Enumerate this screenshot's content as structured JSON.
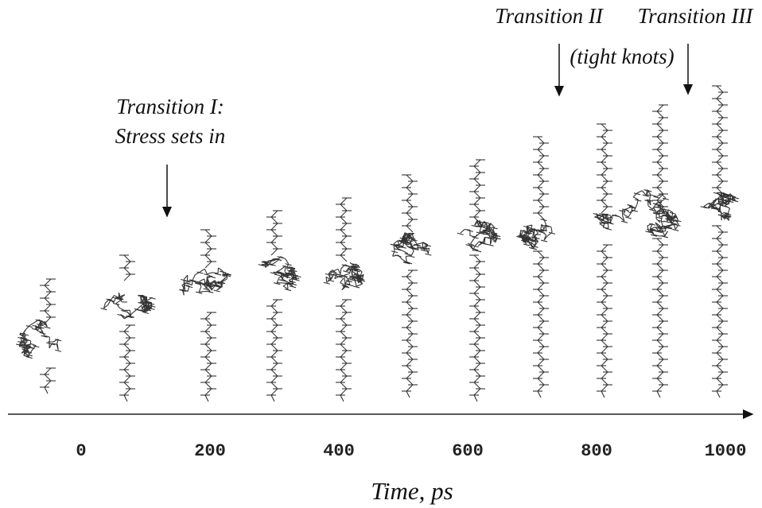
{
  "annotations": {
    "transition_1": [
      "Transition I:",
      "Stress sets in"
    ],
    "transition_2": "Transition II",
    "transition_2_note": "(tight knots)",
    "transition_3": "Transition III"
  },
  "axis": {
    "label": "Time, ps",
    "ticks": [
      0,
      200,
      400,
      600,
      800,
      1000
    ]
  }
}
